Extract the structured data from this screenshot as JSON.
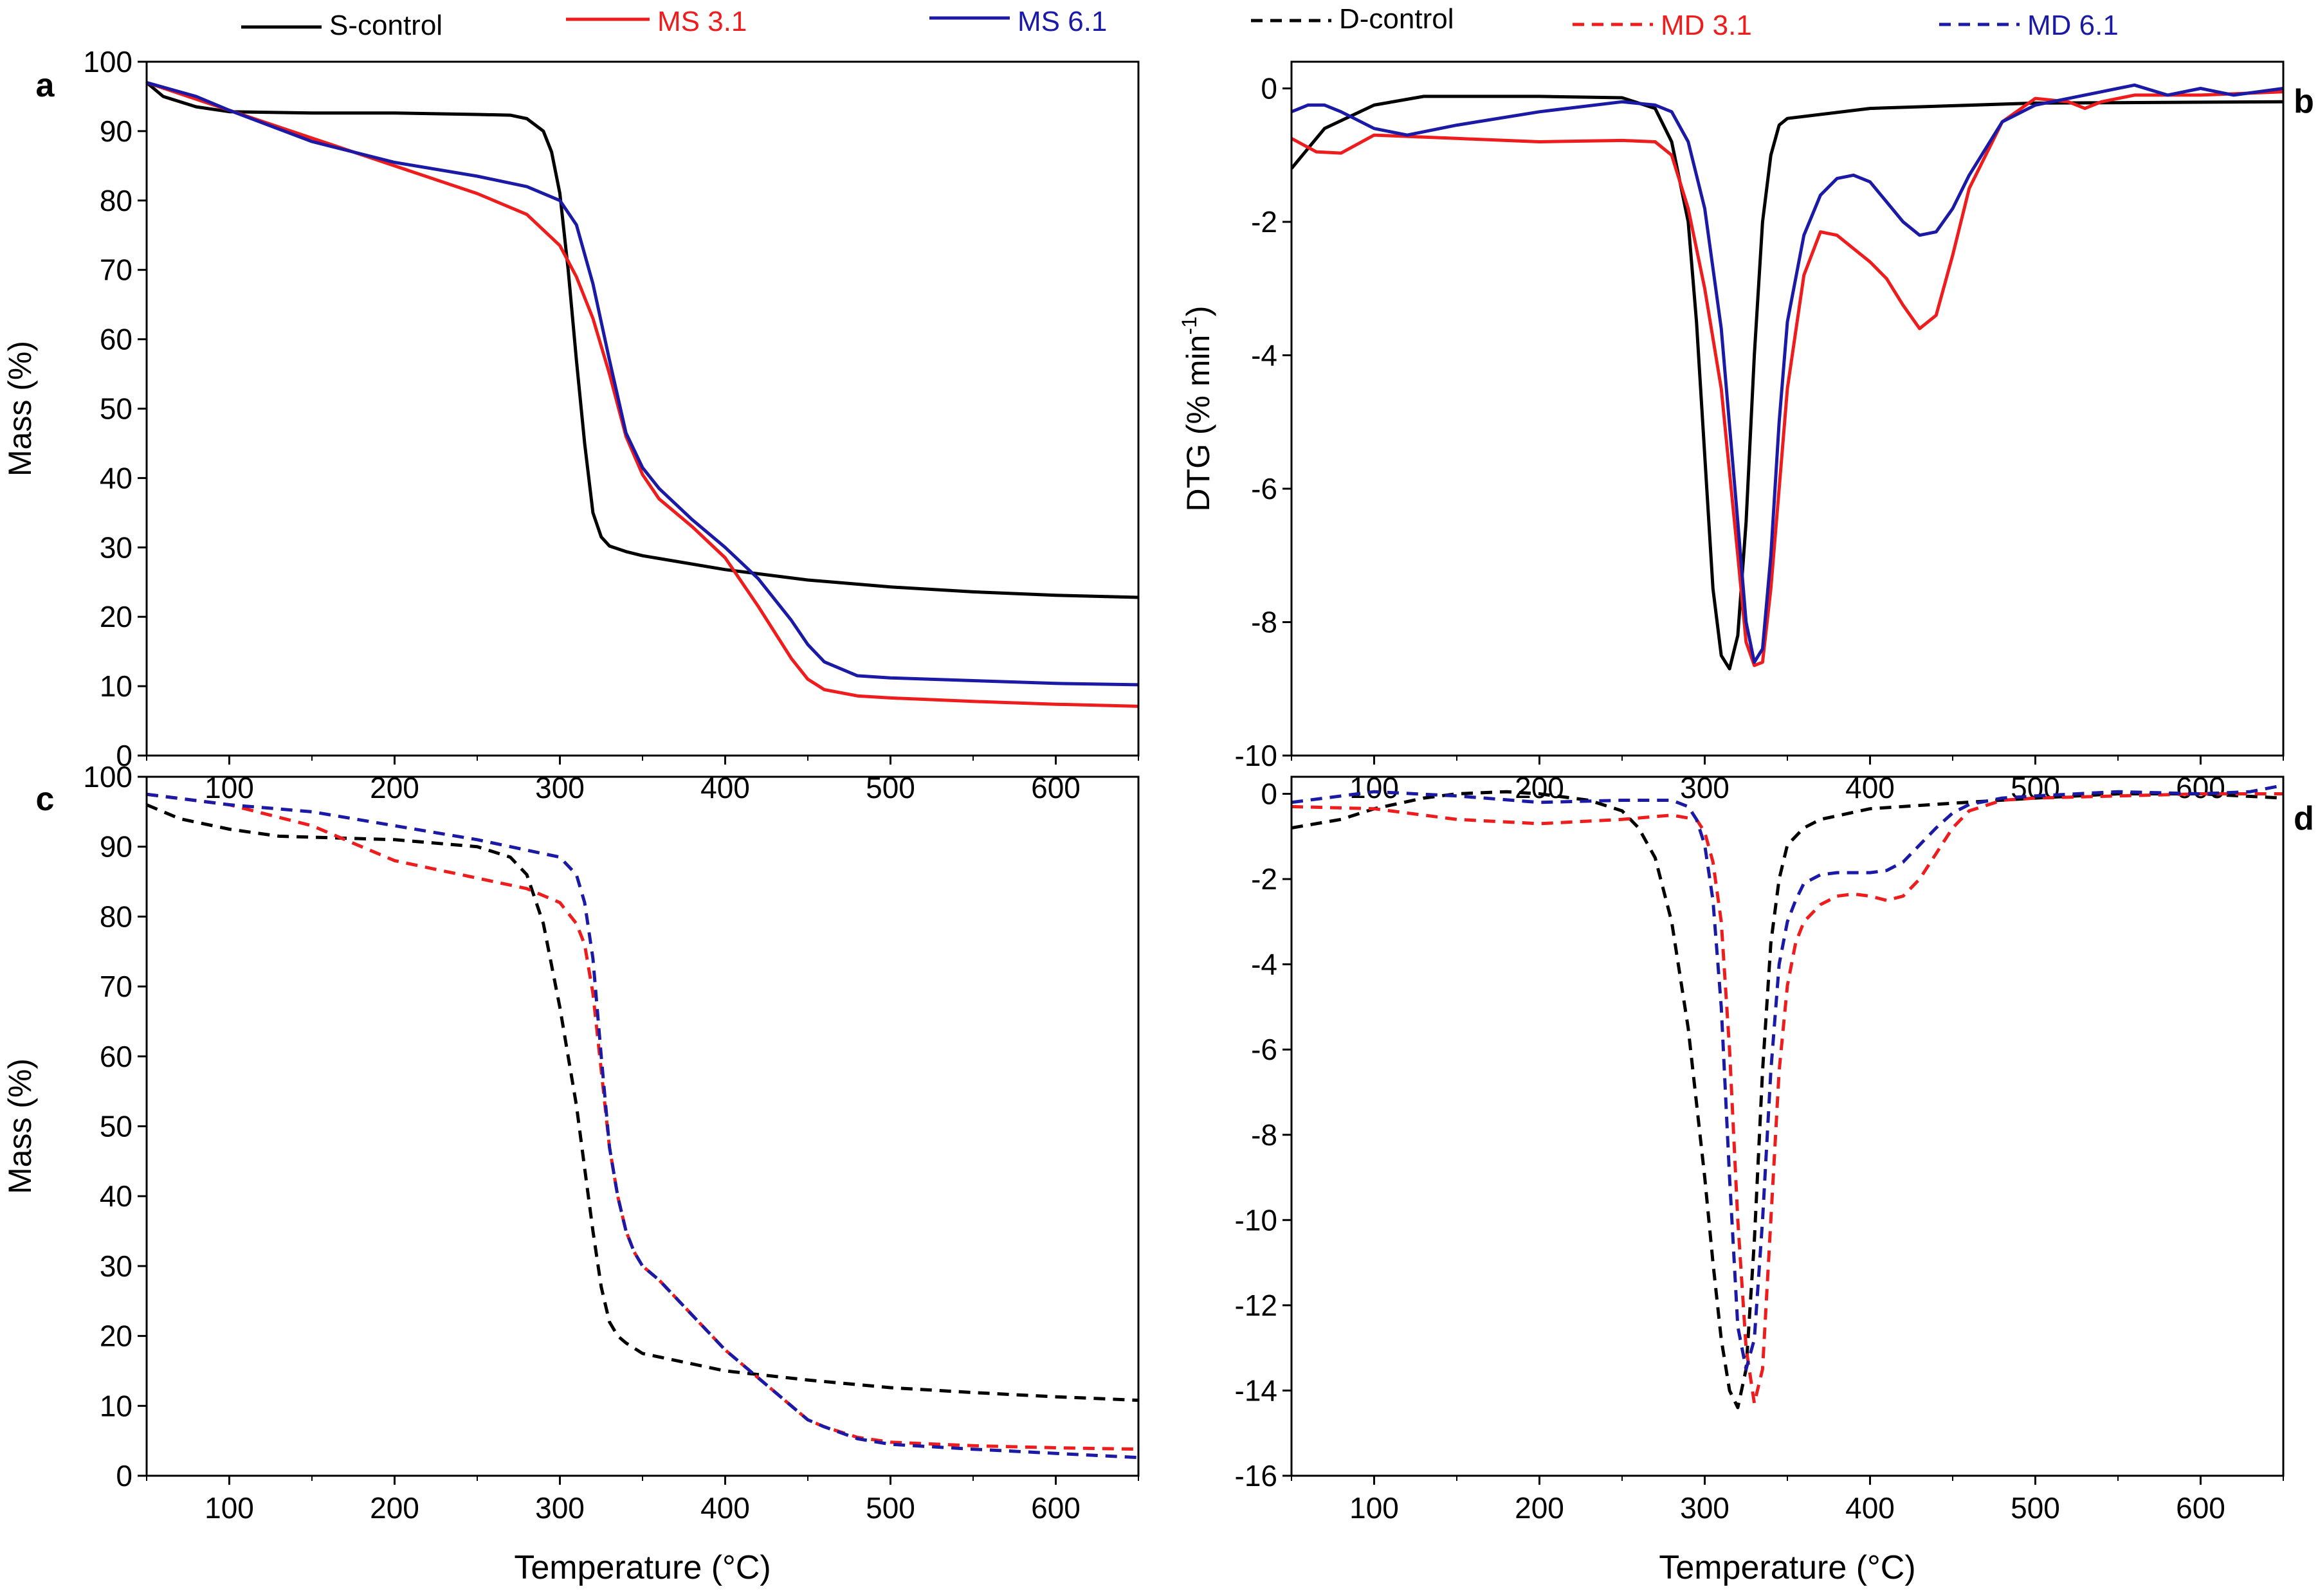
{
  "legend": {
    "solid": [
      {
        "label": "S-control",
        "color": "#000000"
      },
      {
        "label": "MS 3.1",
        "color": "#ee1c1c"
      },
      {
        "label": "MS 6.1",
        "color": "#1a1aa6"
      }
    ],
    "dashed": [
      {
        "label": "D-control",
        "color": "#000000"
      },
      {
        "label": "MD 3.1",
        "color": "#ee1c1c"
      },
      {
        "label": "MD 6.1",
        "color": "#1a1aa6"
      }
    ]
  },
  "chart_data": [
    {
      "panel": "a",
      "type": "line",
      "xlabel": "",
      "ylabel": "Mass (%)",
      "xlim": [
        50,
        650
      ],
      "ylim": [
        0,
        100
      ],
      "xticks": [
        100,
        200,
        300,
        400,
        500,
        600
      ],
      "yticks": [
        0,
        10,
        20,
        30,
        40,
        50,
        60,
        70,
        80,
        90,
        100
      ],
      "series": [
        {
          "name": "S-control",
          "dashed": false,
          "color": "#000000",
          "x": [
            50,
            60,
            80,
            100,
            150,
            200,
            250,
            270,
            280,
            290,
            295,
            300,
            305,
            310,
            315,
            320,
            325,
            330,
            340,
            350,
            400,
            450,
            500,
            550,
            600,
            650
          ],
          "y": [
            97,
            95,
            93.5,
            92.8,
            92.6,
            92.6,
            92.4,
            92.3,
            91.8,
            90,
            87,
            81,
            70,
            57,
            45,
            35,
            31.5,
            30.2,
            29.4,
            28.8,
            26.8,
            25.3,
            24.3,
            23.6,
            23.1,
            22.8
          ]
        },
        {
          "name": "MS 3.1",
          "dashed": false,
          "color": "#ee1c1c",
          "x": [
            50,
            100,
            150,
            200,
            250,
            280,
            300,
            310,
            320,
            330,
            340,
            350,
            360,
            380,
            400,
            420,
            440,
            450,
            460,
            480,
            500,
            550,
            600,
            650
          ],
          "y": [
            97,
            93,
            89,
            85,
            81,
            78,
            73.5,
            69,
            63,
            55,
            46,
            40.5,
            37,
            33,
            28.5,
            21.5,
            14,
            11,
            9.5,
            8.6,
            8.3,
            7.8,
            7.4,
            7.1
          ]
        },
        {
          "name": "MS 6.1",
          "dashed": false,
          "color": "#1a1aa6",
          "x": [
            50,
            80,
            100,
            150,
            200,
            250,
            280,
            300,
            310,
            320,
            330,
            340,
            350,
            360,
            380,
            400,
            420,
            440,
            450,
            460,
            480,
            500,
            550,
            600,
            650
          ],
          "y": [
            97,
            95,
            93,
            88.5,
            85.5,
            83.5,
            82,
            80,
            76.5,
            68,
            57,
            46.5,
            41.5,
            38.5,
            34,
            30,
            25.5,
            19.5,
            16,
            13.5,
            11.5,
            11.2,
            10.8,
            10.4,
            10.2
          ]
        }
      ]
    },
    {
      "panel": "b",
      "type": "line",
      "xlabel": "",
      "ylabel": "DTG (% min",
      "ylabel_superscript": "-1",
      "ylabel_suffix": ")",
      "xlim": [
        50,
        650
      ],
      "ylim": [
        -10,
        0.4
      ],
      "xticks": [
        100,
        200,
        300,
        400,
        500,
        600
      ],
      "yticks": [
        0,
        -2,
        -4,
        -6,
        -8,
        -10
      ],
      "series": [
        {
          "name": "S-control",
          "dashed": false,
          "color": "#000000",
          "x": [
            50,
            70,
            100,
            130,
            200,
            250,
            270,
            280,
            290,
            295,
            300,
            305,
            310,
            315,
            320,
            325,
            330,
            335,
            340,
            345,
            350,
            400,
            500,
            650
          ],
          "y": [
            -1.2,
            -0.6,
            -0.25,
            -0.12,
            -0.12,
            -0.14,
            -0.3,
            -0.8,
            -2,
            -3.5,
            -5.5,
            -7.5,
            -8.5,
            -8.7,
            -8.2,
            -6.5,
            -4,
            -2,
            -1,
            -0.55,
            -0.45,
            -0.3,
            -0.22,
            -0.2
          ]
        },
        {
          "name": "MS 3.1",
          "dashed": false,
          "color": "#ee1c1c",
          "x": [
            50,
            65,
            80,
            100,
            150,
            200,
            250,
            270,
            280,
            290,
            300,
            310,
            320,
            325,
            330,
            335,
            340,
            345,
            350,
            360,
            370,
            380,
            400,
            410,
            420,
            430,
            440,
            450,
            460,
            480,
            500,
            520,
            530,
            540,
            560,
            600,
            650
          ],
          "y": [
            -0.75,
            -0.95,
            -0.97,
            -0.7,
            -0.75,
            -0.8,
            -0.78,
            -0.8,
            -1.0,
            -1.8,
            -3.0,
            -4.5,
            -7.0,
            -8.3,
            -8.65,
            -8.6,
            -7.5,
            -6.0,
            -4.5,
            -2.8,
            -2.15,
            -2.2,
            -2.6,
            -2.85,
            -3.25,
            -3.6,
            -3.4,
            -2.5,
            -1.5,
            -0.5,
            -0.15,
            -0.2,
            -0.3,
            -0.2,
            -0.1,
            -0.1,
            -0.05
          ]
        },
        {
          "name": "MS 6.1",
          "dashed": false,
          "color": "#1a1aa6",
          "x": [
            50,
            60,
            70,
            80,
            100,
            120,
            150,
            200,
            250,
            270,
            280,
            290,
            300,
            310,
            320,
            325,
            330,
            335,
            340,
            345,
            350,
            360,
            370,
            380,
            390,
            400,
            410,
            420,
            430,
            440,
            450,
            460,
            480,
            500,
            520,
            540,
            560,
            580,
            600,
            620,
            650
          ],
          "y": [
            -0.35,
            -0.25,
            -0.25,
            -0.35,
            -0.6,
            -0.7,
            -0.55,
            -0.35,
            -0.2,
            -0.25,
            -0.35,
            -0.8,
            -1.8,
            -3.6,
            -6.5,
            -8.0,
            -8.6,
            -8.4,
            -7.0,
            -5.0,
            -3.5,
            -2.2,
            -1.6,
            -1.35,
            -1.3,
            -1.4,
            -1.7,
            -2.0,
            -2.2,
            -2.15,
            -1.8,
            -1.3,
            -0.5,
            -0.25,
            -0.15,
            -0.05,
            0.05,
            -0.1,
            0.0,
            -0.1,
            0.0
          ]
        }
      ]
    },
    {
      "panel": "c",
      "type": "line",
      "xlabel": "Temperature (°C)",
      "ylabel": "Mass (%)",
      "xlim": [
        50,
        650
      ],
      "ylim": [
        0,
        100
      ],
      "xticks": [
        100,
        200,
        300,
        400,
        500,
        600
      ],
      "yticks": [
        0,
        10,
        20,
        30,
        40,
        50,
        60,
        70,
        80,
        90,
        100
      ],
      "series": [
        {
          "name": "D-control",
          "dashed": true,
          "color": "#000000",
          "x": [
            50,
            70,
            100,
            130,
            200,
            250,
            270,
            280,
            290,
            300,
            310,
            315,
            320,
            325,
            330,
            335,
            340,
            350,
            400,
            450,
            500,
            550,
            600,
            650
          ],
          "y": [
            96,
            94,
            92.5,
            91.5,
            91,
            90,
            88.5,
            86,
            79,
            67,
            53,
            44,
            35,
            27,
            22,
            20,
            19,
            17.5,
            15,
            13.7,
            12.6,
            11.9,
            11.3,
            10.8
          ]
        },
        {
          "name": "MD 3.1",
          "dashed": true,
          "color": "#ee1c1c",
          "x": [
            50,
            100,
            150,
            200,
            250,
            280,
            300,
            310,
            315,
            320,
            325,
            330,
            335,
            340,
            345,
            350,
            360,
            380,
            400,
            420,
            440,
            450,
            460,
            480,
            500,
            550,
            600,
            650
          ],
          "y": [
            97.5,
            96,
            93,
            88,
            85.5,
            84,
            82,
            79,
            76,
            69,
            58,
            47,
            40,
            35,
            32,
            30,
            28,
            23,
            18,
            14,
            10,
            8,
            7,
            5.5,
            4.8,
            4.3,
            4.0,
            3.8
          ]
        },
        {
          "name": "MD 6.1",
          "dashed": true,
          "color": "#1a1aa6",
          "x": [
            50,
            100,
            150,
            200,
            250,
            280,
            300,
            310,
            315,
            320,
            325,
            330,
            335,
            340,
            345,
            350,
            360,
            380,
            400,
            420,
            440,
            450,
            460,
            480,
            500,
            550,
            600,
            650
          ],
          "y": [
            97.5,
            96,
            95,
            93,
            91,
            89.5,
            88.5,
            86,
            82,
            74,
            60,
            47,
            40,
            35,
            32,
            30,
            28,
            23,
            18,
            14,
            10,
            8,
            7,
            5.3,
            4.5,
            3.8,
            3.2,
            2.6
          ]
        }
      ]
    },
    {
      "panel": "d",
      "type": "line",
      "xlabel": "Temperature (°C)",
      "ylabel": "",
      "xlim": [
        50,
        650
      ],
      "ylim": [
        -16,
        0.4
      ],
      "xticks": [
        100,
        200,
        300,
        400,
        500,
        600
      ],
      "yticks": [
        0,
        -2,
        -4,
        -6,
        -8,
        -10,
        -12,
        -14,
        -16
      ],
      "series": [
        {
          "name": "D-control",
          "dashed": true,
          "color": "#000000",
          "x": [
            50,
            80,
            100,
            130,
            150,
            180,
            200,
            230,
            250,
            260,
            270,
            280,
            290,
            300,
            305,
            310,
            315,
            320,
            325,
            330,
            335,
            340,
            345,
            350,
            360,
            370,
            400,
            450,
            500,
            550,
            600,
            650
          ],
          "y": [
            -0.8,
            -0.6,
            -0.35,
            -0.1,
            0.0,
            0.05,
            0.0,
            -0.15,
            -0.4,
            -0.8,
            -1.5,
            -3.0,
            -5.5,
            -9.0,
            -11.0,
            -12.8,
            -14.0,
            -14.4,
            -13.5,
            -10.5,
            -6.5,
            -3.5,
            -2.0,
            -1.2,
            -0.8,
            -0.6,
            -0.35,
            -0.22,
            -0.1,
            0.0,
            0.0,
            -0.1
          ]
        },
        {
          "name": "MD 3.1",
          "dashed": true,
          "color": "#ee1c1c",
          "x": [
            50,
            100,
            150,
            200,
            250,
            280,
            295,
            300,
            305,
            310,
            315,
            320,
            325,
            330,
            335,
            340,
            345,
            350,
            355,
            360,
            370,
            380,
            390,
            400,
            410,
            420,
            430,
            440,
            450,
            460,
            480,
            500,
            550,
            600,
            650
          ],
          "y": [
            -0.3,
            -0.35,
            -0.6,
            -0.7,
            -0.6,
            -0.5,
            -0.6,
            -0.9,
            -1.6,
            -3.0,
            -6.0,
            -10.0,
            -13.0,
            -14.3,
            -13.5,
            -10.0,
            -6.5,
            -4.5,
            -3.5,
            -3.0,
            -2.6,
            -2.4,
            -2.35,
            -2.4,
            -2.5,
            -2.4,
            -2.0,
            -1.4,
            -0.8,
            -0.4,
            -0.15,
            -0.1,
            -0.05,
            0.0,
            0.0
          ]
        },
        {
          "name": "MD 6.1",
          "dashed": true,
          "color": "#1a1aa6",
          "x": [
            50,
            100,
            150,
            200,
            250,
            280,
            290,
            295,
            300,
            305,
            310,
            315,
            320,
            325,
            330,
            335,
            340,
            345,
            350,
            355,
            360,
            370,
            380,
            390,
            400,
            410,
            420,
            430,
            440,
            450,
            460,
            480,
            500,
            550,
            600,
            630,
            650
          ],
          "y": [
            -0.2,
            0.05,
            -0.05,
            -0.2,
            -0.15,
            -0.15,
            -0.3,
            -0.6,
            -1.2,
            -2.5,
            -5.0,
            -9.0,
            -12.5,
            -13.5,
            -12.8,
            -10.0,
            -6.5,
            -4.0,
            -3.0,
            -2.5,
            -2.1,
            -1.9,
            -1.85,
            -1.85,
            -1.85,
            -1.8,
            -1.6,
            -1.2,
            -0.8,
            -0.45,
            -0.25,
            -0.1,
            -0.05,
            0.05,
            0.0,
            0.05,
            0.2
          ]
        }
      ]
    }
  ],
  "panel_labels": [
    "a",
    "b",
    "c",
    "d"
  ]
}
